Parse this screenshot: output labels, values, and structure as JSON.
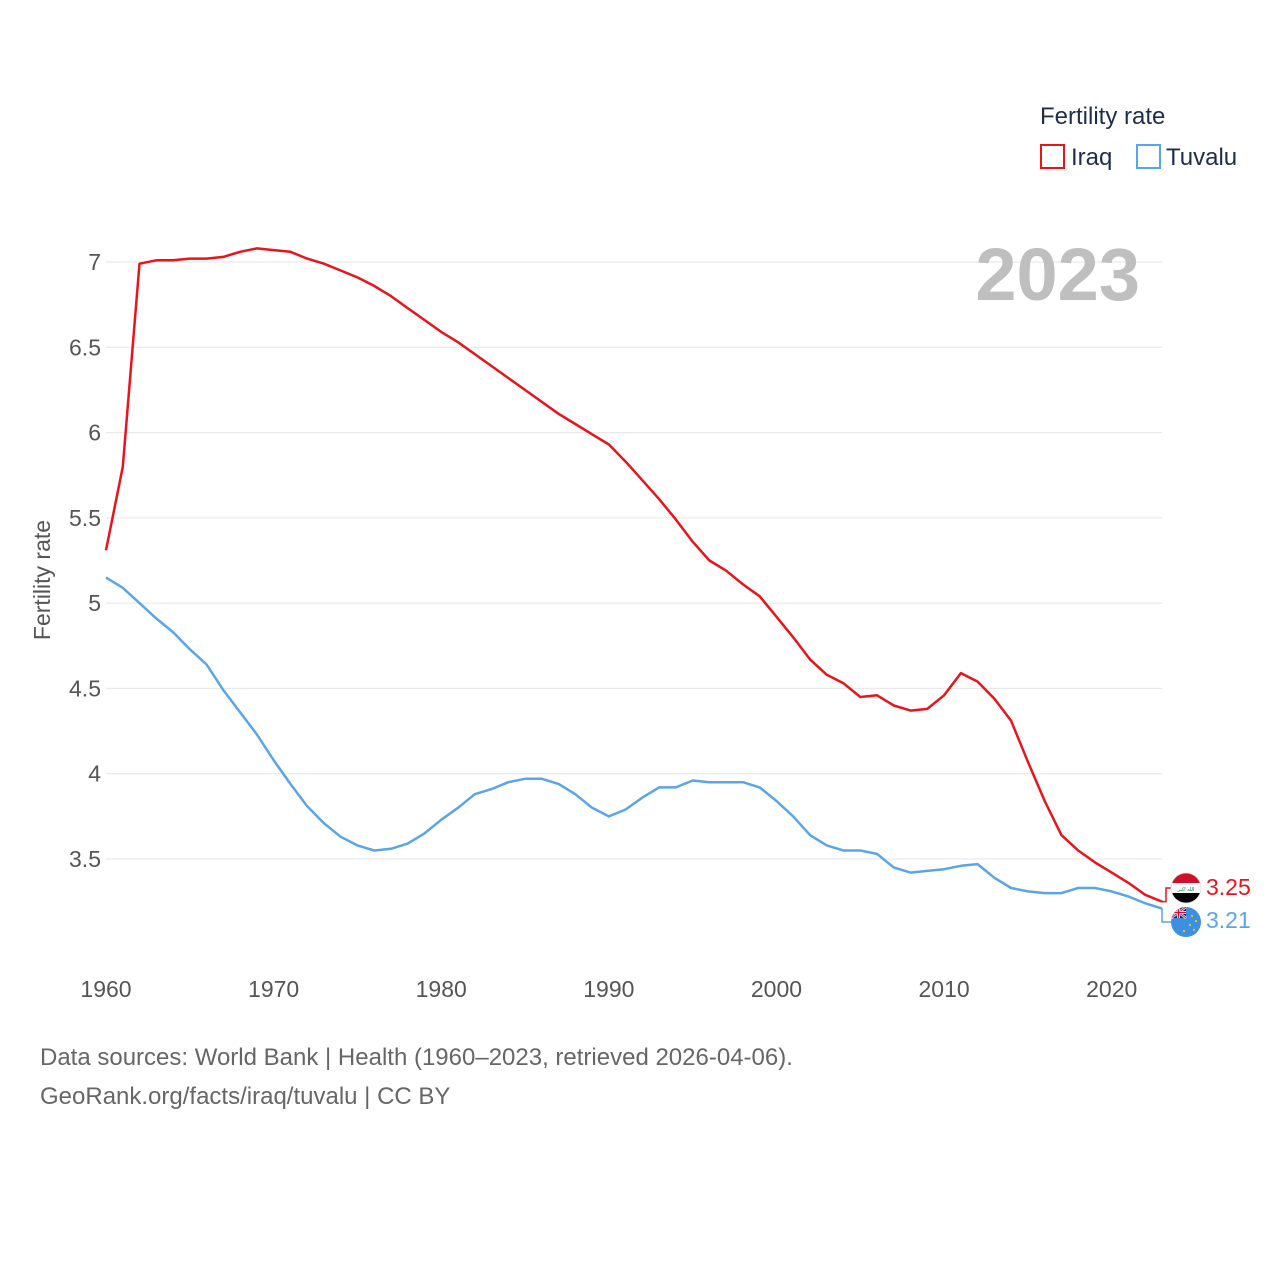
{
  "chart_data": {
    "type": "line",
    "title": "",
    "year_label": "2023",
    "ylabel": "Fertility rate",
    "xlabel": "",
    "xlim": [
      1960,
      2023
    ],
    "ylim": [
      3.0,
      7.2
    ],
    "y_ticks": [
      3.5,
      4,
      4.5,
      5,
      5.5,
      6,
      6.5,
      7
    ],
    "x_ticks": [
      1960,
      1970,
      1980,
      1990,
      2000,
      2010,
      2020
    ],
    "grid": true,
    "legend": {
      "title": "Fertility rate",
      "position": "top-right"
    },
    "x": [
      1960,
      1961,
      1962,
      1963,
      1964,
      1965,
      1966,
      1967,
      1968,
      1969,
      1970,
      1971,
      1972,
      1973,
      1974,
      1975,
      1976,
      1977,
      1978,
      1979,
      1980,
      1981,
      1982,
      1983,
      1984,
      1985,
      1986,
      1987,
      1988,
      1989,
      1990,
      1991,
      1992,
      1993,
      1994,
      1995,
      1996,
      1997,
      1998,
      1999,
      2000,
      2001,
      2002,
      2003,
      2004,
      2005,
      2006,
      2007,
      2008,
      2009,
      2010,
      2011,
      2012,
      2013,
      2014,
      2015,
      2016,
      2017,
      2018,
      2019,
      2020,
      2021,
      2022,
      2023
    ],
    "series": [
      {
        "name": "Iraq",
        "color": "#e8141c",
        "end_label": "3.25",
        "values": [
          5.31,
          5.8,
          6.99,
          7.01,
          7.01,
          7.02,
          7.02,
          7.03,
          7.06,
          7.08,
          7.07,
          7.06,
          7.02,
          6.99,
          6.95,
          6.91,
          6.86,
          6.8,
          6.73,
          6.66,
          6.59,
          6.53,
          6.46,
          6.39,
          6.32,
          6.25,
          6.18,
          6.11,
          6.05,
          5.99,
          5.93,
          5.83,
          5.72,
          5.61,
          5.49,
          5.36,
          5.25,
          5.19,
          5.11,
          5.04,
          4.92,
          4.8,
          4.67,
          4.58,
          4.53,
          4.45,
          4.46,
          4.4,
          4.37,
          4.38,
          4.46,
          4.59,
          4.54,
          4.44,
          4.31,
          4.07,
          3.84,
          3.64,
          3.55,
          3.48,
          3.42,
          3.36,
          3.29,
          3.25
        ]
      },
      {
        "name": "Tuvalu",
        "color": "#5aa5e6",
        "end_label": "3.21",
        "values": [
          5.15,
          5.09,
          5.0,
          4.91,
          4.83,
          4.73,
          4.64,
          4.49,
          4.36,
          4.23,
          4.08,
          3.94,
          3.81,
          3.71,
          3.63,
          3.58,
          3.55,
          3.56,
          3.59,
          3.65,
          3.73,
          3.8,
          3.88,
          3.91,
          3.95,
          3.97,
          3.97,
          3.94,
          3.88,
          3.8,
          3.75,
          3.79,
          3.86,
          3.92,
          3.92,
          3.96,
          3.95,
          3.95,
          3.95,
          3.92,
          3.84,
          3.75,
          3.64,
          3.58,
          3.55,
          3.55,
          3.53,
          3.45,
          3.42,
          3.43,
          3.44,
          3.46,
          3.47,
          3.39,
          3.33,
          3.31,
          3.3,
          3.3,
          3.33,
          3.33,
          3.31,
          3.28,
          3.24,
          3.21
        ]
      }
    ]
  },
  "footer": {
    "source_line": "Data sources: World Bank | Health (1960–2023, retrieved 2026-04-06).",
    "url_line": "GeoRank.org/facts/iraq/tuvalu | CC BY"
  },
  "flags": {
    "iraq_script": "الله اكبر"
  }
}
